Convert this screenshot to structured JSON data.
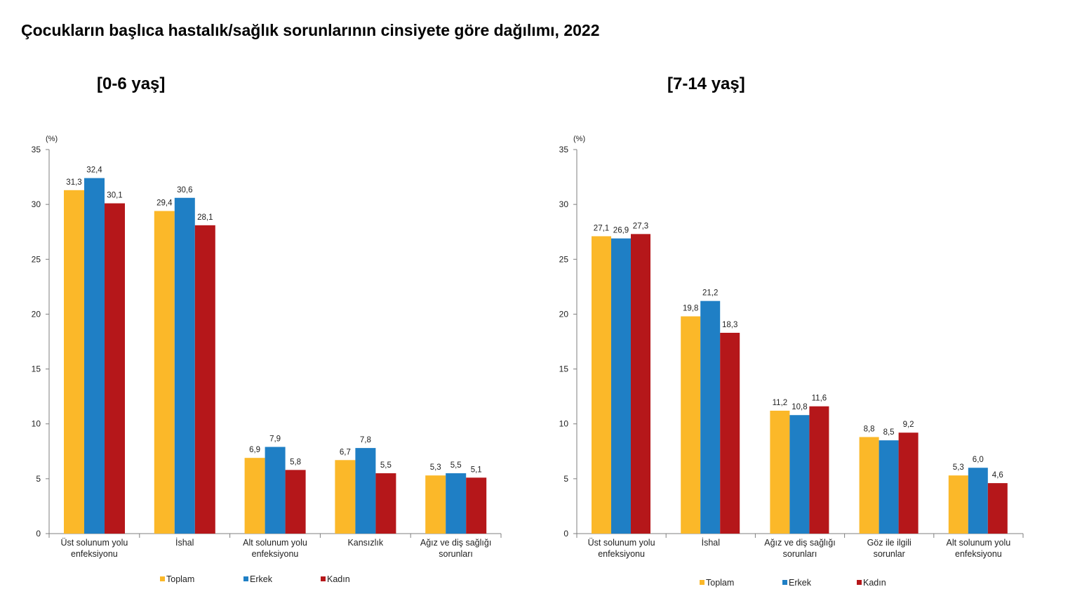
{
  "title": "Çocukların başlıca hastalık/sağlık sorunlarının cinsiyete göre dağılımı, 2022",
  "colors": {
    "Toplam": "#FBB829",
    "Erkek": "#1F7FC5",
    "Kadın": "#B5171A",
    "axis": "#7f7f7f"
  },
  "chart_data": [
    {
      "type": "bar",
      "title": "[0-6 yaş]",
      "unit_label": "(%)",
      "ylim": [
        0,
        35
      ],
      "yticks": [
        0,
        5,
        10,
        15,
        20,
        25,
        30,
        35
      ],
      "grid": false,
      "legend_position": "bottom",
      "categories": [
        [
          "Üst solunum yolu",
          "enfeksiyonu"
        ],
        [
          "İshal"
        ],
        [
          "Alt solunum yolu",
          "enfeksiyonu"
        ],
        [
          "Kansızlık"
        ],
        [
          "Ağız ve diş sağlığı",
          "sorunları"
        ]
      ],
      "series": [
        {
          "name": "Toplam",
          "values": [
            31.3,
            29.4,
            6.9,
            6.7,
            5.3
          ],
          "labels": [
            "31,3",
            "29,4",
            "6,9",
            "6,7",
            "5,3"
          ]
        },
        {
          "name": "Erkek",
          "values": [
            32.4,
            30.6,
            7.9,
            7.8,
            5.5
          ],
          "labels": [
            "32,4",
            "30,6",
            "7,9",
            "7,8",
            "5,5"
          ]
        },
        {
          "name": "Kadın",
          "values": [
            30.1,
            28.1,
            5.8,
            5.5,
            5.1
          ],
          "labels": [
            "30,1",
            "28,1",
            "5,8",
            "5,5",
            "5,1"
          ]
        }
      ]
    },
    {
      "type": "bar",
      "title": "[7-14 yaş]",
      "unit_label": "(%)",
      "ylim": [
        0,
        35
      ],
      "yticks": [
        0,
        5,
        10,
        15,
        20,
        25,
        30,
        35
      ],
      "grid": false,
      "legend_position": "bottom",
      "categories": [
        [
          "Üst solunum yolu",
          "enfeksiyonu"
        ],
        [
          "İshal"
        ],
        [
          "Ağız ve diş sağlığı",
          "sorunları"
        ],
        [
          "Göz ile ilgili",
          "sorunlar"
        ],
        [
          "Alt solunum yolu",
          "enfeksiyonu"
        ]
      ],
      "series": [
        {
          "name": "Toplam",
          "values": [
            27.1,
            19.8,
            11.2,
            8.8,
            5.3
          ],
          "labels": [
            "27,1",
            "19,8",
            "11,2",
            "8,8",
            "5,3"
          ]
        },
        {
          "name": "Erkek",
          "values": [
            26.9,
            21.2,
            10.8,
            8.5,
            6.0
          ],
          "labels": [
            "26,9",
            "21,2",
            "10,8",
            "8,5",
            "6,0"
          ]
        },
        {
          "name": "Kadın",
          "values": [
            27.3,
            18.3,
            11.6,
            9.2,
            4.6
          ],
          "labels": [
            "27,3",
            "18,3",
            "11,6",
            "9,2",
            "4,6"
          ]
        }
      ]
    }
  ]
}
